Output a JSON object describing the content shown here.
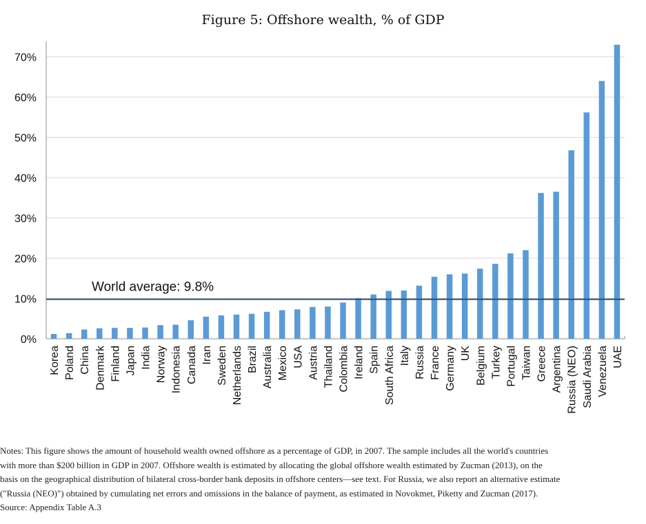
{
  "figure_title": "Figure 5: Offshore wealth, % of GDP",
  "chart_data": {
    "type": "bar",
    "title": "Figure 5: Offshore wealth, % of GDP",
    "xlabel": "",
    "ylabel": "",
    "ylim": [
      0,
      73
    ],
    "yticks": [
      0,
      10,
      20,
      30,
      40,
      50,
      60,
      70
    ],
    "ytick_labels": [
      "0%",
      "10%",
      "20%",
      "30%",
      "40%",
      "50%",
      "60%",
      "70%"
    ],
    "grid": true,
    "bar_color": "#5b9bd5",
    "categories": [
      "Korea",
      "Poland",
      "China",
      "Denmark",
      "Finland",
      "Japan",
      "India",
      "Norway",
      "Indonesia",
      "Canada",
      "Iran",
      "Sweden",
      "Netherlands",
      "Brazil",
      "Australia",
      "Mexico",
      "USA",
      "Austria",
      "Thailand",
      "Colombia",
      "Ireland",
      "Spain",
      "South Africa",
      "Italy",
      "Russia",
      "France",
      "Germany",
      "UK",
      "Belgium",
      "Turkey",
      "Portugal",
      "Taiwan",
      "Greece",
      "Argentina",
      "Russia (NEO)",
      "Saudi Arabia",
      "Venezuela",
      "UAE"
    ],
    "values": [
      1.2,
      1.4,
      2.3,
      2.6,
      2.7,
      2.7,
      2.8,
      3.4,
      3.5,
      4.6,
      5.5,
      5.8,
      6.0,
      6.2,
      6.7,
      7.1,
      7.3,
      7.9,
      8.0,
      9.0,
      10.1,
      11.0,
      11.9,
      12.0,
      13.2,
      15.4,
      16.0,
      16.2,
      17.4,
      18.6,
      21.2,
      22.0,
      36.2,
      36.5,
      46.8,
      56.2,
      64.0,
      73.0
    ],
    "reference_line": {
      "value": 9.8,
      "label": "World average: 9.8%",
      "color": "#2b4f72"
    }
  },
  "notes": {
    "lines": [
      "Notes: This figure shows the amount of household wealth owned offshore as a percentage of GDP, in 2007. The sample includes all the world's countries",
      "with more than $200 billion in GDP in 2007. Offshore wealth is estimated by allocating the global offshore wealth estimated by Zucman (2013), on the",
      "basis on the geographical distribution of bilateral cross-border bank deposits in offshore centers—see text. For Russia, we also report an alternative estimate",
      "(\"Russia (NEO)\") obtained by cumulating net errors and omissions in the balance of payment, as estimated in Novokmet, Piketty and Zucman (2017).",
      "Source: Appendix Table A.3"
    ]
  }
}
